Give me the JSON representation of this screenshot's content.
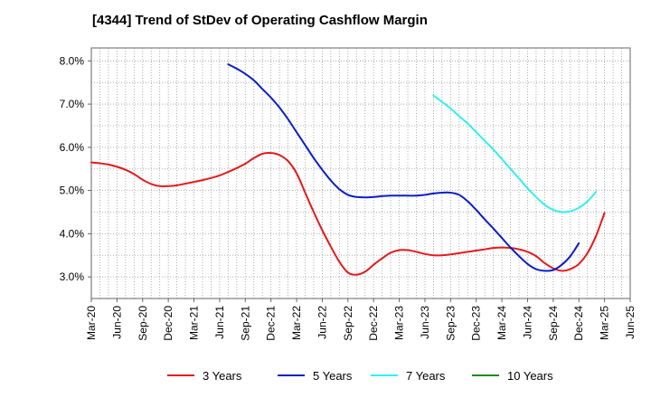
{
  "chart_data": {
    "type": "line",
    "title": "[4344]  Trend of StDev of Operating Cashflow Margin",
    "xlabel": "",
    "ylabel": "",
    "ylim": [
      2.5,
      8.3
    ],
    "x_ticks": [
      "Mar-20",
      "Jun-20",
      "Sep-20",
      "Dec-20",
      "Mar-21",
      "Jun-21",
      "Sep-21",
      "Dec-21",
      "Mar-22",
      "Jun-22",
      "Sep-22",
      "Dec-22",
      "Mar-23",
      "Jun-23",
      "Sep-23",
      "Dec-23",
      "Mar-24",
      "Jun-24",
      "Sep-24",
      "Dec-24",
      "Mar-25",
      "Jun-25"
    ],
    "y_ticks": [
      "3.0%",
      "4.0%",
      "5.0%",
      "6.0%",
      "7.0%",
      "8.0%"
    ],
    "y_tick_values": [
      3,
      4,
      5,
      6,
      7,
      8
    ],
    "grid": true,
    "legend_position": "bottom",
    "series": [
      {
        "name": "3 Years",
        "color": "#e31a1c",
        "points": [
          [
            "Mar-20",
            5.65
          ],
          [
            "Apr-20",
            5.63
          ],
          [
            "May-20",
            5.6
          ],
          [
            "Jun-20",
            5.55
          ],
          [
            "Jul-20",
            5.48
          ],
          [
            "Aug-20",
            5.38
          ],
          [
            "Sep-20",
            5.25
          ],
          [
            "Oct-20",
            5.15
          ],
          [
            "Nov-20",
            5.1
          ],
          [
            "Dec-20",
            5.1
          ],
          [
            "Jan-21",
            5.12
          ],
          [
            "Feb-21",
            5.16
          ],
          [
            "Mar-21",
            5.2
          ],
          [
            "Apr-21",
            5.24
          ],
          [
            "May-21",
            5.29
          ],
          [
            "Jun-21",
            5.35
          ],
          [
            "Jul-21",
            5.43
          ],
          [
            "Aug-21",
            5.52
          ],
          [
            "Sep-21",
            5.62
          ],
          [
            "Oct-21",
            5.75
          ],
          [
            "Nov-21",
            5.85
          ],
          [
            "Dec-21",
            5.87
          ],
          [
            "Jan-22",
            5.82
          ],
          [
            "Feb-22",
            5.68
          ],
          [
            "Mar-22",
            5.4
          ],
          [
            "Apr-22",
            4.95
          ],
          [
            "May-22",
            4.5
          ],
          [
            "Jun-22",
            4.08
          ],
          [
            "Jul-22",
            3.7
          ],
          [
            "Aug-22",
            3.35
          ],
          [
            "Sep-22",
            3.1
          ],
          [
            "Oct-22",
            3.05
          ],
          [
            "Nov-22",
            3.12
          ],
          [
            "Dec-22",
            3.28
          ],
          [
            "Jan-23",
            3.43
          ],
          [
            "Feb-23",
            3.56
          ],
          [
            "Mar-23",
            3.62
          ],
          [
            "Apr-23",
            3.62
          ],
          [
            "May-23",
            3.58
          ],
          [
            "Jun-23",
            3.53
          ],
          [
            "Jul-23",
            3.5
          ],
          [
            "Aug-23",
            3.5
          ],
          [
            "Sep-23",
            3.52
          ],
          [
            "Oct-23",
            3.55
          ],
          [
            "Nov-23",
            3.58
          ],
          [
            "Dec-23",
            3.61
          ],
          [
            "Jan-24",
            3.64
          ],
          [
            "Feb-24",
            3.67
          ],
          [
            "Mar-24",
            3.68
          ],
          [
            "Apr-24",
            3.67
          ],
          [
            "May-24",
            3.64
          ],
          [
            "Jun-24",
            3.58
          ],
          [
            "Jul-24",
            3.48
          ],
          [
            "Aug-24",
            3.32
          ],
          [
            "Sep-24",
            3.2
          ],
          [
            "Oct-24",
            3.14
          ],
          [
            "Nov-24",
            3.18
          ],
          [
            "Dec-24",
            3.3
          ],
          [
            "Jan-25",
            3.55
          ],
          [
            "Feb-25",
            3.95
          ],
          [
            "Mar-25",
            4.48
          ]
        ]
      },
      {
        "name": "5 Years",
        "color": "#0a1ec8",
        "points": [
          [
            "Jul-21",
            7.92
          ],
          [
            "Aug-21",
            7.82
          ],
          [
            "Sep-21",
            7.7
          ],
          [
            "Oct-21",
            7.55
          ],
          [
            "Nov-21",
            7.35
          ],
          [
            "Dec-21",
            7.15
          ],
          [
            "Jan-22",
            6.92
          ],
          [
            "Feb-22",
            6.65
          ],
          [
            "Mar-22",
            6.35
          ],
          [
            "Apr-22",
            6.05
          ],
          [
            "May-22",
            5.75
          ],
          [
            "Jun-22",
            5.48
          ],
          [
            "Jul-22",
            5.23
          ],
          [
            "Aug-22",
            5.03
          ],
          [
            "Sep-22",
            4.9
          ],
          [
            "Oct-22",
            4.85
          ],
          [
            "Nov-22",
            4.84
          ],
          [
            "Dec-22",
            4.85
          ],
          [
            "Jan-23",
            4.87
          ],
          [
            "Feb-23",
            4.88
          ],
          [
            "Mar-23",
            4.88
          ],
          [
            "Apr-23",
            4.88
          ],
          [
            "May-23",
            4.88
          ],
          [
            "Jun-23",
            4.9
          ],
          [
            "Jul-23",
            4.93
          ],
          [
            "Aug-23",
            4.95
          ],
          [
            "Sep-23",
            4.95
          ],
          [
            "Oct-23",
            4.9
          ],
          [
            "Nov-23",
            4.75
          ],
          [
            "Dec-23",
            4.55
          ],
          [
            "Jan-24",
            4.33
          ],
          [
            "Feb-24",
            4.12
          ],
          [
            "Mar-24",
            3.9
          ],
          [
            "Apr-24",
            3.68
          ],
          [
            "May-24",
            3.48
          ],
          [
            "Jun-24",
            3.3
          ],
          [
            "Jul-24",
            3.18
          ],
          [
            "Aug-24",
            3.14
          ],
          [
            "Sep-24",
            3.16
          ],
          [
            "Oct-24",
            3.28
          ],
          [
            "Nov-24",
            3.48
          ],
          [
            "Dec-24",
            3.78
          ]
        ]
      },
      {
        "name": "7 Years",
        "color": "#33f0f0",
        "points": [
          [
            "Jul-23",
            7.2
          ],
          [
            "Aug-23",
            7.05
          ],
          [
            "Sep-23",
            6.9
          ],
          [
            "Oct-23",
            6.72
          ],
          [
            "Nov-23",
            6.55
          ],
          [
            "Dec-23",
            6.35
          ],
          [
            "Jan-24",
            6.15
          ],
          [
            "Feb-24",
            5.95
          ],
          [
            "Mar-24",
            5.73
          ],
          [
            "Apr-24",
            5.5
          ],
          [
            "May-24",
            5.28
          ],
          [
            "Jun-24",
            5.05
          ],
          [
            "Jul-24",
            4.85
          ],
          [
            "Aug-24",
            4.67
          ],
          [
            "Sep-24",
            4.55
          ],
          [
            "Oct-24",
            4.5
          ],
          [
            "Nov-24",
            4.52
          ],
          [
            "Dec-24",
            4.6
          ],
          [
            "Jan-25",
            4.75
          ],
          [
            "Feb-25",
            4.97
          ]
        ]
      },
      {
        "name": "10 Years",
        "color": "#1a8a1a",
        "points": []
      }
    ]
  }
}
